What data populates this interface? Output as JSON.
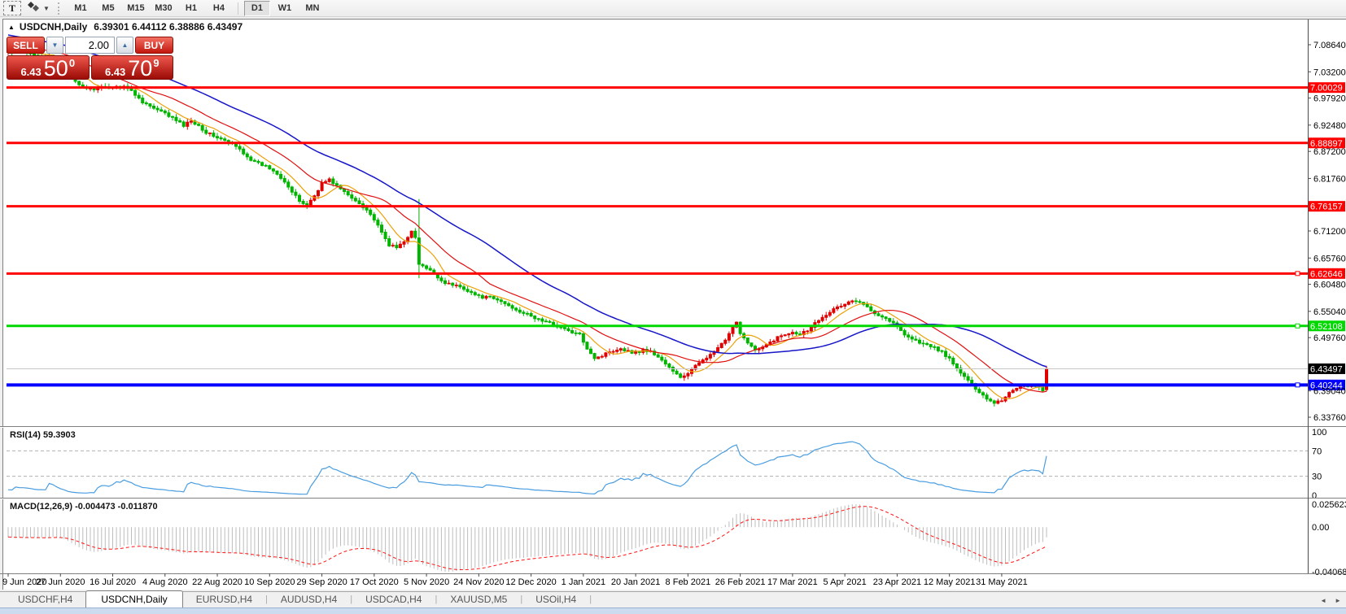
{
  "toolbar": {
    "text_tool": "T",
    "dropdown_caret": "▼",
    "timeframes": [
      "M1",
      "M5",
      "M15",
      "M30",
      "H1",
      "H4",
      "D1",
      "W1",
      "MN"
    ],
    "active_timeframe": "D1"
  },
  "window": {
    "collapse_glyph": "▲",
    "title_symbol": "USDCNH,Daily",
    "title_ohlc": "6.39301 6.44112 6.38886 6.43497"
  },
  "trade_panel": {
    "sell_label": "SELL",
    "buy_label": "BUY",
    "volume": "2.00",
    "spinner_down": "▼",
    "spinner_up": "▲",
    "sell_price": {
      "small": "6.43",
      "big": "50",
      "sup": "0"
    },
    "buy_price": {
      "small": "6.43",
      "big": "70",
      "sup": "9"
    }
  },
  "chart_data": {
    "type": "candlestick",
    "symbol": "USDCNH",
    "timeframe": "Daily",
    "ohlc_readout": {
      "open": "6.39301",
      "high": "6.44112",
      "low": "6.38886",
      "close": "6.43497"
    },
    "colors": {
      "bull": "#e00000",
      "bear": "#00b400",
      "current_line": "#c8c8c8",
      "axis": "#5a5a5a"
    },
    "price_axis": {
      "top": 7.0864,
      "bottom": 6.3376,
      "ticks": [
        "7.08640",
        "7.03200",
        "6.97920",
        "6.92480",
        "6.87200",
        "6.81760",
        "6.71200",
        "6.65760",
        "6.60480",
        "6.55040",
        "6.49760",
        "6.39040",
        "6.33760"
      ]
    },
    "x_labels": [
      "9 Jun 2020",
      "27 Jun 2020",
      "16 Jul 2020",
      "4 Aug 2020",
      "22 Aug 2020",
      "10 Sep 2020",
      "29 Sep 2020",
      "17 Oct 2020",
      "5 Nov 2020",
      "24 Nov 2020",
      "12 Dec 2020",
      "1 Jan 2021",
      "20 Jan 2021",
      "8 Feb 2021",
      "26 Feb 2021",
      "17 Mar 2021",
      "5 Apr 2021",
      "23 Apr 2021",
      "12 May 2021",
      "31 May 2021"
    ],
    "hlines": [
      {
        "price": "7.00029",
        "color": "#ff0000",
        "width": 3,
        "handle": false
      },
      {
        "price": "6.88897",
        "color": "#ff0000",
        "width": 3,
        "handle": false
      },
      {
        "price": "6.76157",
        "color": "#ff0000",
        "width": 3,
        "handle": false
      },
      {
        "price": "6.62646",
        "color": "#ff0000",
        "width": 3,
        "handle": true
      },
      {
        "price": "6.52108",
        "color": "#00d800",
        "width": 3,
        "handle": true
      },
      {
        "price": "6.40244",
        "color": "#0000ff",
        "width": 4,
        "handle": true
      }
    ],
    "current_price": "6.43497",
    "bars_total": 279,
    "anchors": [
      [
        0,
        7.072
      ],
      [
        6,
        7.068
      ],
      [
        12,
        7.062
      ],
      [
        15,
        7.045
      ],
      [
        17,
        7.018
      ],
      [
        19,
        7.004
      ],
      [
        22,
        6.997
      ],
      [
        25,
        7.0
      ],
      [
        28,
        7.001
      ],
      [
        31,
        7.004
      ],
      [
        33,
        6.993
      ],
      [
        36,
        6.972
      ],
      [
        39,
        6.958
      ],
      [
        42,
        6.948
      ],
      [
        45,
        6.934
      ],
      [
        47,
        6.924
      ],
      [
        49,
        6.934
      ],
      [
        51,
        6.924
      ],
      [
        53,
        6.91
      ],
      [
        56,
        6.9
      ],
      [
        58,
        6.893
      ],
      [
        60,
        6.887
      ],
      [
        62,
        6.876
      ],
      [
        64,
        6.862
      ],
      [
        66,
        6.85
      ],
      [
        68,
        6.845
      ],
      [
        70,
        6.838
      ],
      [
        72,
        6.828
      ],
      [
        74,
        6.812
      ],
      [
        76,
        6.79
      ],
      [
        78,
        6.772
      ],
      [
        80,
        6.763
      ],
      [
        82,
        6.783
      ],
      [
        84,
        6.808
      ],
      [
        86,
        6.815
      ],
      [
        88,
        6.803
      ],
      [
        90,
        6.79
      ],
      [
        92,
        6.778
      ],
      [
        94,
        6.768
      ],
      [
        96,
        6.755
      ],
      [
        98,
        6.735
      ],
      [
        100,
        6.708
      ],
      [
        102,
        6.684
      ],
      [
        104,
        6.678
      ],
      [
        106,
        6.692
      ],
      [
        108,
        6.71
      ],
      [
        109,
        6.698
      ],
      [
        110,
        6.645
      ],
      [
        112,
        6.636
      ],
      [
        114,
        6.627
      ],
      [
        116,
        6.612
      ],
      [
        118,
        6.605
      ],
      [
        120,
        6.602
      ],
      [
        122,
        6.597
      ],
      [
        124,
        6.588
      ],
      [
        126,
        6.58
      ],
      [
        129,
        6.578
      ],
      [
        132,
        6.57
      ],
      [
        135,
        6.558
      ],
      [
        138,
        6.547
      ],
      [
        141,
        6.537
      ],
      [
        144,
        6.529
      ],
      [
        147,
        6.521
      ],
      [
        150,
        6.511
      ],
      [
        153,
        6.503
      ],
      [
        155,
        6.477
      ],
      [
        157,
        6.457
      ],
      [
        159,
        6.461
      ],
      [
        161,
        6.47
      ],
      [
        164,
        6.476
      ],
      [
        166,
        6.47
      ],
      [
        168,
        6.467
      ],
      [
        170,
        6.473
      ],
      [
        172,
        6.469
      ],
      [
        174,
        6.459
      ],
      [
        176,
        6.445
      ],
      [
        178,
        6.429
      ],
      [
        180,
        6.418
      ],
      [
        182,
        6.425
      ],
      [
        184,
        6.44
      ],
      [
        186,
        6.455
      ],
      [
        188,
        6.462
      ],
      [
        190,
        6.477
      ],
      [
        192,
        6.491
      ],
      [
        194,
        6.517
      ],
      [
        195,
        6.531
      ],
      [
        196,
        6.506
      ],
      [
        198,
        6.489
      ],
      [
        200,
        6.472
      ],
      [
        202,
        6.477
      ],
      [
        204,
        6.488
      ],
      [
        206,
        6.498
      ],
      [
        208,
        6.504
      ],
      [
        210,
        6.51
      ],
      [
        212,
        6.505
      ],
      [
        214,
        6.513
      ],
      [
        216,
        6.527
      ],
      [
        218,
        6.54
      ],
      [
        220,
        6.55
      ],
      [
        222,
        6.558
      ],
      [
        224,
        6.565
      ],
      [
        226,
        6.572
      ],
      [
        228,
        6.567
      ],
      [
        230,
        6.56
      ],
      [
        232,
        6.548
      ],
      [
        234,
        6.54
      ],
      [
        236,
        6.532
      ],
      [
        238,
        6.52
      ],
      [
        240,
        6.505
      ],
      [
        242,
        6.495
      ],
      [
        244,
        6.488
      ],
      [
        246,
        6.482
      ],
      [
        248,
        6.477
      ],
      [
        250,
        6.469
      ],
      [
        252,
        6.454
      ],
      [
        254,
        6.435
      ],
      [
        256,
        6.419
      ],
      [
        258,
        6.403
      ],
      [
        260,
        6.389
      ],
      [
        262,
        6.375
      ],
      [
        264,
        6.367
      ],
      [
        266,
        6.372
      ],
      [
        268,
        6.387
      ],
      [
        270,
        6.397
      ],
      [
        272,
        6.402
      ],
      [
        274,
        6.4
      ],
      [
        276,
        6.397
      ],
      [
        277,
        6.393
      ],
      [
        278,
        6.43497
      ]
    ],
    "special_bars": {
      "110": [
        6.698,
        6.776,
        6.617,
        6.645
      ],
      "278": [
        6.39301,
        6.44112,
        6.38886,
        6.43497
      ]
    },
    "moving_averages": [
      {
        "period": 8,
        "color": "#eda10a",
        "width": 1.2
      },
      {
        "period": 20,
        "color": "#e01010",
        "width": 1.2
      },
      {
        "period": 45,
        "color": "#1616c8",
        "width": 1.5
      }
    ],
    "indicators": {
      "rsi": {
        "label": "RSI(14) 59.3903",
        "period": 14,
        "color": "#4a9de0",
        "axis_labels": [
          "100",
          "70",
          "30",
          "0"
        ],
        "dashed_levels": [
          70,
          30
        ]
      },
      "macd": {
        "label": "MACD(12,26,9) -0.004473 -0.011870",
        "fast": 12,
        "slow": 26,
        "signal": 9,
        "hist_color": "#bdbdbd",
        "signal_color": "#ff1414",
        "axis_labels": [
          "0.025623",
          "0.00",
          "-0.040688"
        ]
      }
    }
  },
  "tabs": {
    "items": [
      {
        "label": "USDCHF,H4",
        "active": false
      },
      {
        "label": "USDCNH,Daily",
        "active": true
      },
      {
        "label": "EURUSD,H4",
        "active": false
      },
      {
        "label": "AUDUSD,H4",
        "active": false
      },
      {
        "label": "USDCAD,H4",
        "active": false
      },
      {
        "label": "XAUUSD,M5",
        "active": false
      },
      {
        "label": "USOil,H4",
        "active": false
      }
    ],
    "scroll_left": "◄",
    "scroll_right": "►"
  }
}
